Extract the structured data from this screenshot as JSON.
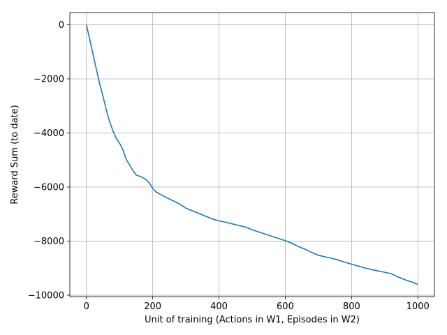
{
  "chart_data": {
    "type": "line",
    "title": "",
    "xlabel": "Unit of training (Actions in W1, Episodes in W2)",
    "ylabel": "Reward Sum (to date)",
    "xlim": [
      -50,
      1050
    ],
    "ylim": [
      -10050,
      450
    ],
    "xticks": [
      0,
      200,
      400,
      600,
      800,
      1000
    ],
    "xtick_labels": [
      "0",
      "200",
      "400",
      "600",
      "800",
      "1000"
    ],
    "yticks": [
      0,
      -2000,
      -4000,
      -6000,
      -8000,
      -10000
    ],
    "ytick_labels": [
      "0",
      "−2000",
      "−4000",
      "−6000",
      "−8000",
      "−10000"
    ],
    "grid": true,
    "series": [
      {
        "color": "#1f77b4",
        "x": [
          0,
          10,
          20,
          30,
          40,
          50,
          60,
          70,
          80,
          90,
          100,
          110,
          120,
          130,
          140,
          150,
          160,
          170,
          180,
          190,
          200,
          210,
          220,
          240,
          260,
          280,
          300,
          320,
          340,
          360,
          380,
          400,
          420,
          440,
          460,
          480,
          500,
          520,
          540,
          560,
          580,
          600,
          620,
          640,
          660,
          680,
          700,
          720,
          740,
          760,
          780,
          800,
          820,
          840,
          860,
          880,
          900,
          920,
          940,
          960,
          980,
          1000
        ],
        "y": [
          0,
          -540,
          -1100,
          -1650,
          -2180,
          -2650,
          -3150,
          -3580,
          -3920,
          -4200,
          -4380,
          -4620,
          -4980,
          -5180,
          -5380,
          -5550,
          -5600,
          -5650,
          -5720,
          -5850,
          -6050,
          -6180,
          -6250,
          -6380,
          -6500,
          -6620,
          -6780,
          -6880,
          -6980,
          -7080,
          -7180,
          -7250,
          -7300,
          -7360,
          -7420,
          -7480,
          -7580,
          -7660,
          -7740,
          -7820,
          -7900,
          -7980,
          -8080,
          -8200,
          -8300,
          -8420,
          -8520,
          -8580,
          -8630,
          -8700,
          -8780,
          -8850,
          -8920,
          -8990,
          -9050,
          -9100,
          -9150,
          -9200,
          -9320,
          -9420,
          -9500,
          -9600
        ]
      }
    ]
  }
}
